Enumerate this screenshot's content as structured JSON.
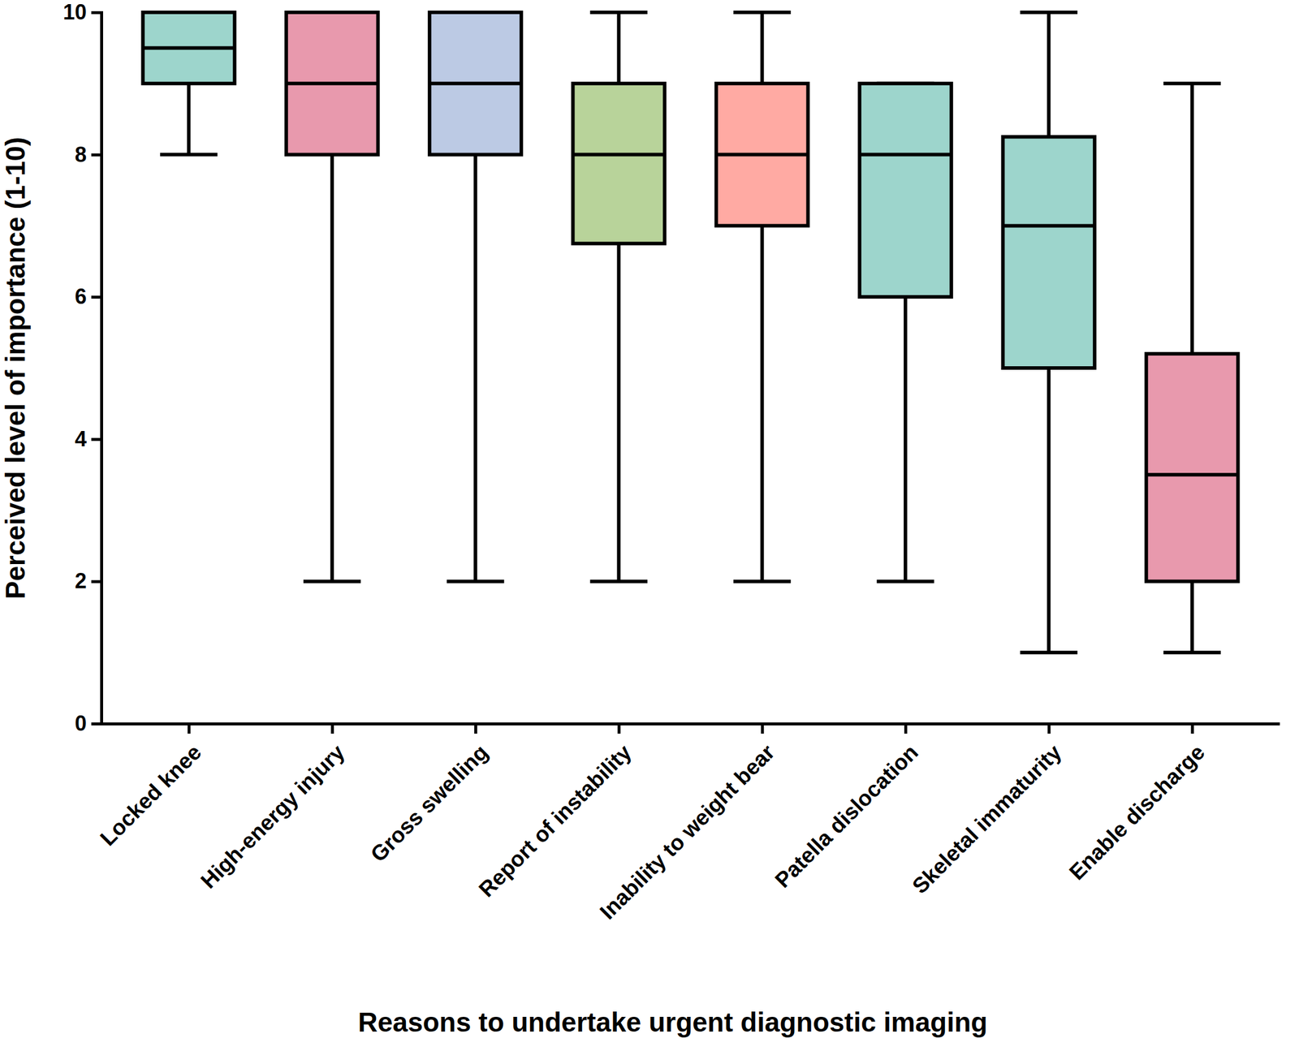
{
  "chart_data": {
    "type": "box",
    "x_label": "Reasons to undertake urgent diagnostic imaging",
    "y_label": "Perceived level of importance (1-10)",
    "categories": [
      "Locked knee",
      "High-energy injury",
      "Gross swelling",
      "Report of instability",
      "Inability to weight bear",
      "Patella dislocation",
      "Skeletal immaturity",
      "Enable discharge"
    ],
    "min": [
      8,
      2,
      2,
      2,
      2,
      2,
      1,
      1
    ],
    "q1": [
      9,
      8,
      8,
      6.75,
      7,
      6,
      5,
      2
    ],
    "median": [
      9.5,
      9,
      9,
      8,
      8,
      8,
      7,
      3.5
    ],
    "q3": [
      10,
      10,
      10,
      9,
      9,
      9,
      8.25,
      5.2
    ],
    "max": [
      10,
      10,
      10,
      10,
      10,
      9,
      10,
      9
    ],
    "colors": [
      "#9dd5cc",
      "#e899ad",
      "#bccae4",
      "#b8d39a",
      "#ffaaa3",
      "#9dd5cc",
      "#9dd5cc",
      "#e899ad"
    ],
    "ylim": [
      0,
      10
    ],
    "yticks": [
      0,
      2,
      4,
      6,
      8,
      10
    ],
    "grid": false
  }
}
